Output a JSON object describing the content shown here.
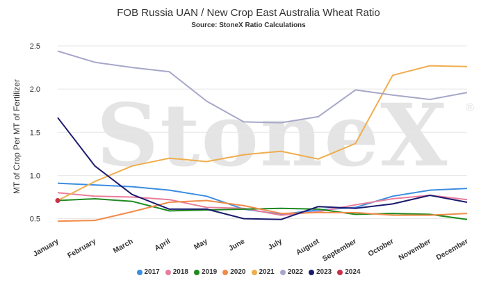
{
  "chart_data": {
    "type": "line",
    "title": "FOB Russia UAN / New Crop East Australia Wheat Ratio",
    "subtitle": "Source: StoneX Ratio Calculations",
    "watermark": "StoneX",
    "watermark_mark": "®",
    "ylabel": "MT of Crop Per MT of Fertilizer",
    "xlabel": "",
    "ylim": [
      0.4,
      2.5
    ],
    "yticks": [
      "0.5",
      "1.0",
      "1.5",
      "2.0",
      "2.5"
    ],
    "grid": true,
    "legend_position": "bottom",
    "categories": [
      "January",
      "February",
      "March",
      "April",
      "May",
      "June",
      "July",
      "August",
      "September",
      "October",
      "November",
      "December"
    ],
    "series": [
      {
        "name": "2017",
        "color": "#3b8de0",
        "values": [
          0.91,
          0.89,
          0.87,
          0.83,
          0.76,
          0.61,
          0.55,
          0.6,
          0.63,
          0.76,
          0.83,
          0.85
        ]
      },
      {
        "name": "2018",
        "color": "#e87d9b",
        "values": [
          0.8,
          0.76,
          0.75,
          0.72,
          0.63,
          0.62,
          0.54,
          0.58,
          0.66,
          0.73,
          0.77,
          0.72
        ]
      },
      {
        "name": "2019",
        "color": "#1f8a1f",
        "values": [
          0.71,
          0.73,
          0.7,
          0.59,
          0.6,
          0.61,
          0.62,
          0.61,
          0.55,
          0.56,
          0.55,
          0.49
        ]
      },
      {
        "name": "2020",
        "color": "#f08b4a",
        "values": [
          0.47,
          0.48,
          0.58,
          0.69,
          0.71,
          0.65,
          0.56,
          0.57,
          0.57,
          0.54,
          0.54,
          0.56
        ]
      },
      {
        "name": "2021",
        "color": "#f0ad4e",
        "values": [
          0.71,
          0.93,
          1.11,
          1.2,
          1.16,
          1.24,
          1.28,
          1.19,
          1.37,
          2.16,
          2.27,
          2.26
        ]
      },
      {
        "name": "2022",
        "color": "#a7a7c9",
        "values": [
          2.44,
          2.31,
          2.25,
          2.2,
          1.86,
          1.62,
          1.61,
          1.68,
          1.99,
          1.93,
          1.88,
          1.96
        ]
      },
      {
        "name": "2023",
        "color": "#1a1a6e",
        "values": [
          1.67,
          1.11,
          0.78,
          0.61,
          0.61,
          0.5,
          0.49,
          0.64,
          0.62,
          0.67,
          0.77,
          0.69
        ]
      },
      {
        "name": "2024",
        "color": "#cc2e4a",
        "values": [
          0.71,
          null,
          null,
          null,
          null,
          null,
          null,
          null,
          null,
          null,
          null,
          null
        ]
      }
    ]
  }
}
